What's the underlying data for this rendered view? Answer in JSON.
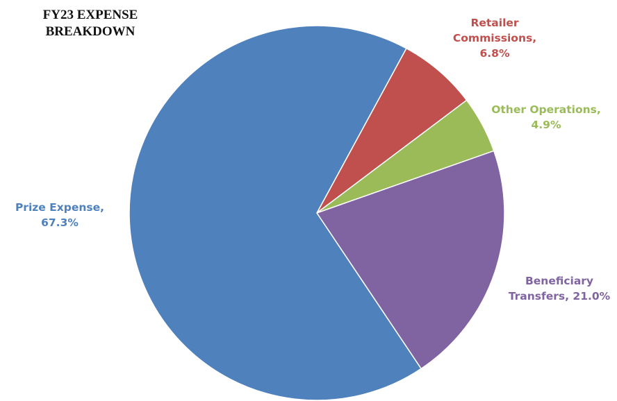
{
  "chart_data": {
    "type": "pie",
    "title": "FY23 EXPENSE BREAKDOWN",
    "title_lines": [
      "FY23 EXPENSE",
      "BREAKDOWN"
    ],
    "start_angle_deg": 28.5,
    "direction": "clockwise",
    "slices": [
      {
        "name": "Retailer Commissions",
        "value": 6.8,
        "color": "#C0504D",
        "label_lines": [
          "Retailer",
          "Commissions,",
          "6.8%"
        ]
      },
      {
        "name": "Other Operations",
        "value": 4.9,
        "color": "#9BBB59",
        "label_lines": [
          "Other Operations,",
          "4.9%"
        ]
      },
      {
        "name": "Beneficiary Transfers",
        "value": 21.0,
        "color": "#8064A2",
        "label_lines": [
          "Beneficiary",
          "Transfers, 21.0%"
        ]
      },
      {
        "name": "Prize Expense",
        "value": 67.3,
        "color": "#4F81BD",
        "label_lines": [
          "Prize Expense,",
          "67.3%"
        ]
      }
    ]
  }
}
